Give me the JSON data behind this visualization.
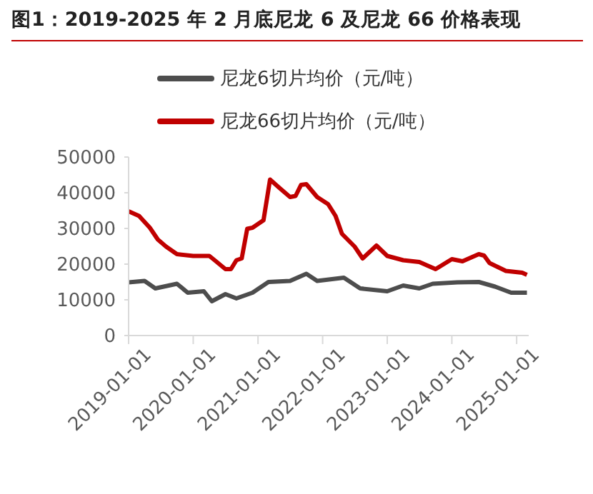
{
  "chart_data": {
    "type": "line",
    "title": "图1：2019-2025 年 2 月底尼龙 6 及尼龙 66 价格表现",
    "legend": "top",
    "grid": false,
    "marker": "none",
    "line_style": "solid",
    "xlim": [
      "2019-01-01",
      "2025-03-10"
    ],
    "xticks": [
      "2019-01-01",
      "2020-01-01",
      "2021-01-01",
      "2022-01-01",
      "2023-01-01",
      "2024-01-01",
      "2025-01-01"
    ],
    "ylim": [
      0,
      50000
    ],
    "yticks": [
      0,
      10000,
      20000,
      30000,
      40000,
      50000
    ],
    "series": [
      {
        "name": "尼龙6切片均价（元/吨）",
        "color": "#4d4d4d",
        "x": [
          "2019-01-01",
          "2019-04-01",
          "2019-06-01",
          "2019-10-01",
          "2019-12-01",
          "2020-03-01",
          "2020-04-15",
          "2020-07-01",
          "2020-09-01",
          "2020-12-01",
          "2021-03-01",
          "2021-07-01",
          "2021-10-01",
          "2021-12-01",
          "2022-05-01",
          "2022-08-01",
          "2023-01-01",
          "2023-04-01",
          "2023-07-01",
          "2023-09-15",
          "2024-02-01",
          "2024-06-01",
          "2024-09-01",
          "2024-12-01",
          "2025-02-28"
        ],
        "values": [
          14900,
          15300,
          13200,
          14500,
          12000,
          12400,
          9600,
          11600,
          10400,
          12000,
          15000,
          15300,
          17300,
          15300,
          16200,
          13200,
          12400,
          14000,
          13200,
          14500,
          14900,
          15000,
          13700,
          12000,
          12000
        ]
      },
      {
        "name": "尼龙66切片均价（元/吨）",
        "color": "#c00000",
        "x": [
          "2019-01-01",
          "2019-03-01",
          "2019-05-01",
          "2019-06-15",
          "2019-08-01",
          "2019-10-01",
          "2020-01-01",
          "2020-04-01",
          "2020-05-01",
          "2020-07-01",
          "2020-08-01",
          "2020-09-01",
          "2020-10-01",
          "2020-11-01",
          "2020-12-01",
          "2021-02-01",
          "2021-03-10",
          "2021-05-01",
          "2021-07-01",
          "2021-08-01",
          "2021-09-01",
          "2021-10-01",
          "2021-12-01",
          "2022-02-01",
          "2022-03-15",
          "2022-04-20",
          "2022-07-01",
          "2022-08-15",
          "2022-11-01",
          "2023-01-01",
          "2023-04-01",
          "2023-07-01",
          "2023-10-01",
          "2024-01-01",
          "2024-03-01",
          "2024-06-01",
          "2024-07-01",
          "2024-08-01",
          "2024-11-01",
          "2025-02-01",
          "2025-02-28"
        ],
        "values": [
          34800,
          33500,
          30200,
          26900,
          24900,
          22800,
          22300,
          22300,
          21100,
          18600,
          18600,
          21100,
          21600,
          29900,
          30200,
          32300,
          43700,
          41400,
          38800,
          39100,
          42200,
          42400,
          38800,
          36800,
          33500,
          28500,
          24900,
          21600,
          25200,
          22300,
          21100,
          20600,
          18600,
          21400,
          20800,
          22800,
          22400,
          20300,
          18100,
          17600,
          17000
        ]
      }
    ]
  }
}
